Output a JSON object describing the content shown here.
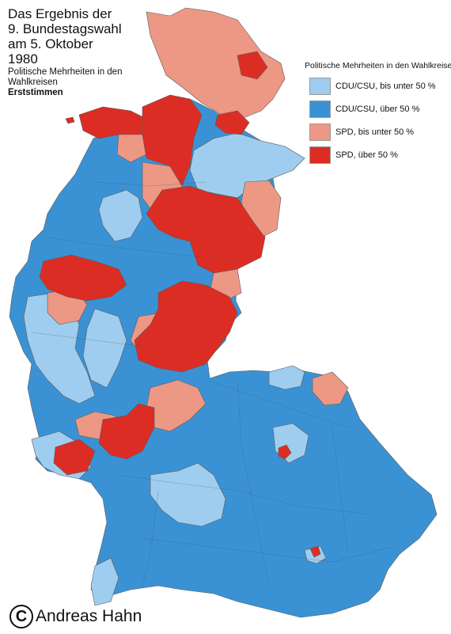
{
  "title": {
    "lines": [
      "Das Ergebnis der",
      "9. Bundestagswahl",
      "am 5. Oktober",
      "1980"
    ],
    "subtitle": "Politische Mehrheiten in den Wahlkreisen",
    "subtitle_bold": "Erststimmen"
  },
  "legend": {
    "heading": "Politische Mehrheiten in den Wahlkreisen",
    "items": [
      {
        "label": "CDU/CSU, bis unter 50 %",
        "color": "#9fcdef"
      },
      {
        "label": "CDU/CSU, über 50 %",
        "color": "#3a92d4"
      },
      {
        "label": "SPD, bis unter 50 %",
        "color": "#ec9885"
      },
      {
        "label": "SPD, über 50 %",
        "color": "#dc2d24"
      }
    ]
  },
  "credit": {
    "symbol": "C",
    "text": "Andreas Hahn"
  },
  "map": {
    "colors": {
      "cdu_under": "#9fcdef",
      "cdu_over": "#3a92d4",
      "spd_under": "#ec9885",
      "spd_over": "#dc2d24",
      "border": "#5a5a5a"
    }
  }
}
